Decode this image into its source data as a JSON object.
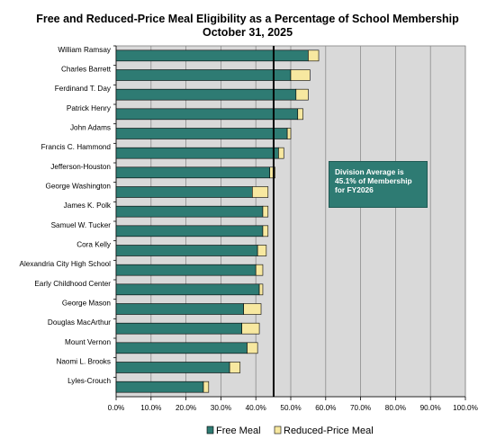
{
  "chart_data": {
    "type": "bar",
    "orientation": "horizontal",
    "stacked": true,
    "title": "Free and Reduced-Price Meal Eligibility as a Percentage of School Membership",
    "subtitle": "October 31, 2025",
    "categories": [
      "William Ramsay",
      "Charles Barrett",
      "Ferdinand T. Day",
      "Patrick Henry",
      "John Adams",
      "Francis C. Hammond",
      "Jefferson-Houston",
      "George Washington",
      "James K. Polk",
      "Samuel W. Tucker",
      "Cora Kelly",
      "Alexandria City High School",
      "Early Childhood Center",
      "George Mason",
      "Douglas MacArthur",
      "Mount Vernon",
      "Naomi L. Brooks",
      "Lyles-Crouch"
    ],
    "series": [
      {
        "name": "Free Meal",
        "color": "#2e7b73",
        "values": [
          55.0,
          50.0,
          51.5,
          52.0,
          49.0,
          46.5,
          44.0,
          39.0,
          42.0,
          42.0,
          40.5,
          40.0,
          41.0,
          36.5,
          36.0,
          37.5,
          32.5,
          25.0
        ]
      },
      {
        "name": "Reduced-Price Meal",
        "color": "#f7e8a0",
        "values": [
          3.0,
          5.5,
          3.5,
          1.5,
          1.0,
          1.5,
          1.5,
          4.5,
          1.5,
          1.5,
          2.5,
          2.0,
          1.0,
          5.0,
          5.0,
          3.0,
          3.0,
          1.5
        ]
      }
    ],
    "xlim": [
      0,
      100
    ],
    "xticks": [
      "0.0%",
      "10.0%",
      "20.0%",
      "30.0%",
      "40.0%",
      "50.0%",
      "60.0%",
      "70.0%",
      "80.0%",
      "90.0%",
      "100.0%"
    ],
    "reference_line": {
      "value": 45.1
    },
    "annotation": "Division Average is 45.1% of Membership for FY2026",
    "grid": true,
    "plot_background": "#d9d9d9",
    "legend": {
      "position": "bottom"
    }
  }
}
